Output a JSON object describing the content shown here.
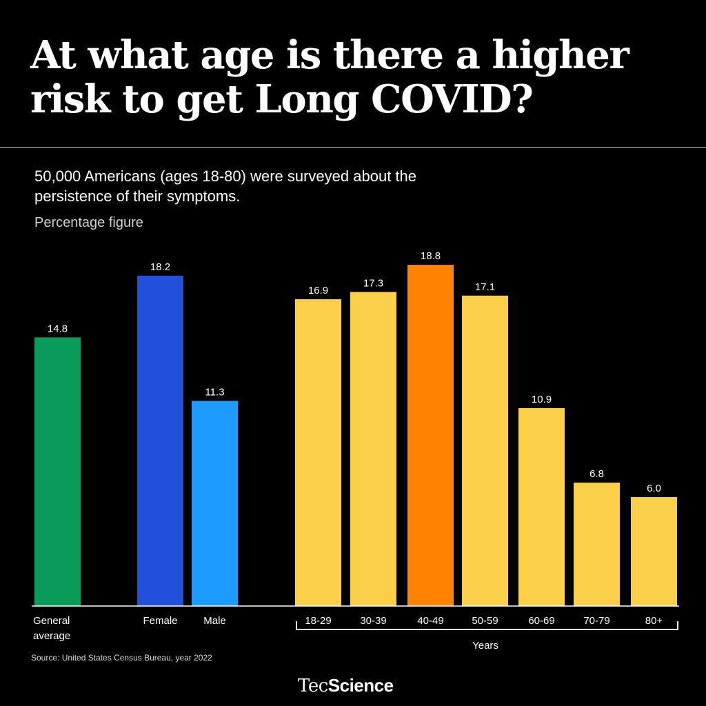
{
  "header": {
    "title": "At what age is there a higher risk to get Long COVID?",
    "subtitle": "50,000 Americans (ages 18-80) were surveyed about the persistence of their symptoms.",
    "unit_label": "Percentage figure"
  },
  "footer": {
    "source": "Source: United States Census Bureau, year 2022",
    "brand_prefix": "Tec",
    "brand_suffix": "Science"
  },
  "chart_data": {
    "type": "bar",
    "categories": [
      "General average",
      "Female",
      "Male",
      "18-29",
      "30-39",
      "40-49",
      "50-59",
      "60-69",
      "70-79",
      "80+"
    ],
    "values": [
      14.8,
      18.2,
      11.3,
      16.9,
      17.3,
      18.8,
      17.1,
      10.9,
      6.8,
      6.0
    ],
    "value_labels": [
      "14.8",
      "18.2",
      "11.3",
      "16.9",
      "17.3",
      "18.8",
      "17.1",
      "10.9",
      "6.8",
      "6.0"
    ],
    "colors": [
      "#0a9a5a",
      "#2350d8",
      "#1e9bff",
      "#f9d04a",
      "#f9d04a",
      "#ff8200",
      "#f9d04a",
      "#f9d04a",
      "#f9d04a",
      "#f9d04a"
    ],
    "group_label": "Years",
    "ylim": [
      0,
      18.8
    ],
    "grid": false
  }
}
